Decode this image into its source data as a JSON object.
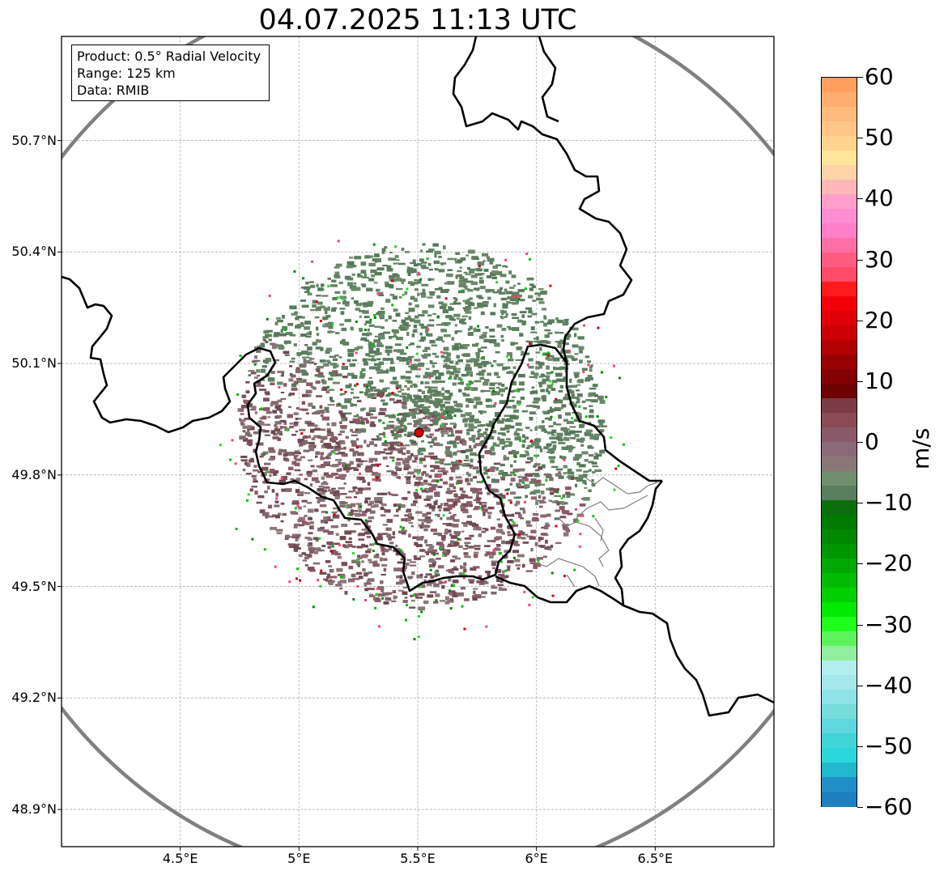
{
  "title": "04.07.2025 11:13 UTC",
  "info_box": {
    "product": "Product: 0.5° Radial Velocity",
    "range": "Range: 125 km",
    "data": "Data: RMIB"
  },
  "axes": {
    "lat_ticks": [
      "50.7°N",
      "50.4°N",
      "50.1°N",
      "49.8°N",
      "49.5°N",
      "49.2°N",
      "48.9°N"
    ],
    "lon_ticks": [
      "4.5°E",
      "5°E",
      "5.5°E",
      "6°E",
      "6.5°E"
    ],
    "lat_values": [
      50.7,
      50.4,
      50.1,
      49.8,
      49.5,
      49.2,
      48.9
    ],
    "lon_values": [
      4.5,
      5.0,
      5.5,
      6.0,
      6.5
    ],
    "lat_range": [
      48.8,
      50.98
    ],
    "lon_range": [
      4.0,
      7.0
    ]
  },
  "radar": {
    "site_lon": 5.505,
    "site_lat": 49.914,
    "range_km": 125,
    "site_color": "#e00000",
    "range_ring_color": "#808080"
  },
  "colorbar": {
    "unit": "m/s",
    "min": -60,
    "max": 60,
    "ticks": [
      "60",
      "50",
      "40",
      "30",
      "20",
      "10",
      "0",
      "−10",
      "−20",
      "−30",
      "−40",
      "−50",
      "−60"
    ],
    "tick_values": [
      60,
      50,
      40,
      30,
      20,
      10,
      0,
      -10,
      -20,
      -30,
      -40,
      -50,
      -60
    ],
    "colors": [
      "#ffa060",
      "#ffae70",
      "#ffbb7c",
      "#ffc688",
      "#ffd48e",
      "#ffe598",
      "#ffd3a8",
      "#ffb7b7",
      "#ff9fcb",
      "#ff8dd2",
      "#ff80c8",
      "#ff6fa6",
      "#ff5c82",
      "#ff4b66",
      "#ff1b1b",
      "#f20008",
      "#de0006",
      "#cc0004",
      "#b30003",
      "#990002",
      "#840002",
      "#6e0000",
      "#7a3b44",
      "#8a4a56",
      "#8a5a6a",
      "#8a6a78",
      "#8a7878",
      "#6f8f6f",
      "#5a7d5e",
      "#0b6e0b",
      "#007a00",
      "#008800",
      "#009600",
      "#00a800",
      "#00bc00",
      "#00d000",
      "#00ea00",
      "#1eff1e",
      "#5cf25c",
      "#90ee9e",
      "#b3eeee",
      "#a4e8ec",
      "#8ee2e8",
      "#78dcdc",
      "#5ed8dc",
      "#40d6d8",
      "#2ad8dc",
      "#22b8cc",
      "#2290c8",
      "#1f80c0"
    ]
  },
  "borders_color": "#000000",
  "subregion_color": "#808080"
}
